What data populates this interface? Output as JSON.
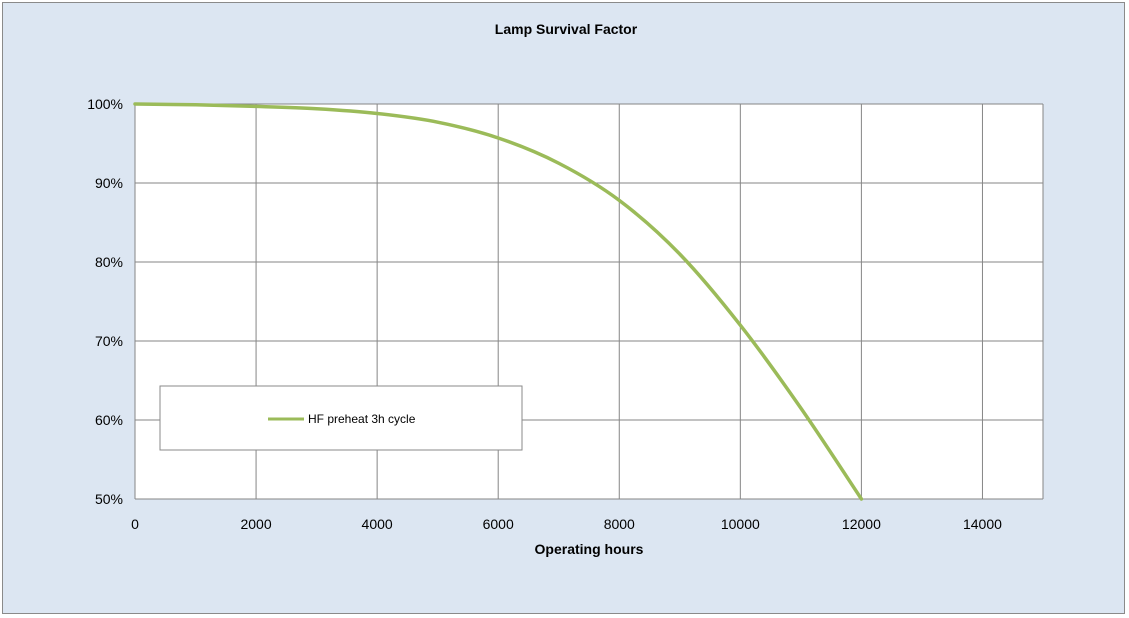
{
  "chart_data": {
    "type": "line",
    "title": "Lamp Survival Factor",
    "xlabel": "Operating hours",
    "ylabel": "",
    "xlim": [
      0,
      15000
    ],
    "ylim": [
      0.5,
      1.0
    ],
    "x_ticks": [
      0,
      2000,
      4000,
      6000,
      8000,
      10000,
      12000,
      14000
    ],
    "x_tick_labels": [
      "0",
      "2000",
      "4000",
      "6000",
      "8000",
      "10000",
      "12000",
      "14000"
    ],
    "y_ticks": [
      0.5,
      0.6,
      0.7,
      0.8,
      0.9,
      1.0
    ],
    "y_tick_labels": [
      "50%",
      "60%",
      "70%",
      "80%",
      "90%",
      "100%"
    ],
    "grid": true,
    "legend_position": "center-left",
    "series": [
      {
        "name": "HF preheat 3h cycle",
        "color": "#9bbb59",
        "x": [
          0,
          1000,
          2000,
          3000,
          4000,
          5000,
          6000,
          7000,
          8000,
          9000,
          10000,
          11000,
          12000
        ],
        "values": [
          1.0,
          0.999,
          0.997,
          0.994,
          0.988,
          0.977,
          0.957,
          0.925,
          0.878,
          0.81,
          0.72,
          0.615,
          0.5
        ]
      }
    ]
  }
}
